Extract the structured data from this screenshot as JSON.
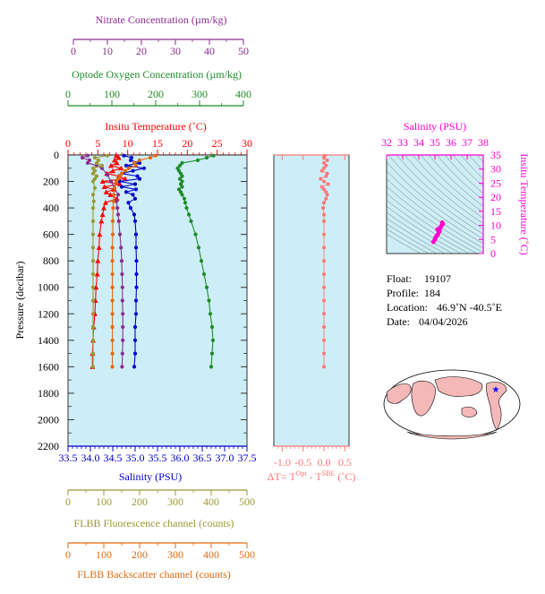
{
  "colors": {
    "nitrate": "#8b2c8f",
    "oxygen": "#1e8b28",
    "temperature": "#ff0000",
    "salinity": "#0000cc",
    "fluorescence": "#999933",
    "backscatter": "#e06a10",
    "delta": "#ff7777",
    "ts": "#ff00cc",
    "panel_bg": "#cdeef6",
    "axis_dark": "#333333",
    "map_land": "#f4b8b8",
    "map_sea": "#ffffff",
    "float_marker": "#0000ff"
  },
  "axes": {
    "nitrate": {
      "title": "Nitrate Concentration (µm/kg)",
      "ticks": [
        "0",
        "10",
        "20",
        "30",
        "40",
        "50"
      ]
    },
    "oxygen": {
      "title": "Optode Oxygen Concentration (µm/kg)",
      "ticks": [
        "0",
        "100",
        "200",
        "300",
        "400"
      ]
    },
    "temperature": {
      "title": "Insitu Temperature (˚C)",
      "ticks": [
        "0",
        "5",
        "10",
        "15",
        "20",
        "25",
        "30"
      ]
    },
    "pressure": {
      "title": "Pressure (decibar)",
      "ticks": [
        "0",
        "200",
        "400",
        "600",
        "800",
        "1000",
        "1200",
        "1400",
        "1600",
        "1800",
        "2000",
        "2200"
      ]
    },
    "salinity": {
      "title": "Salinity (PSU)",
      "ticks": [
        "33.5",
        "34.0",
        "34.5",
        "35.0",
        "35.5",
        "36.0",
        "36.5",
        "37.0",
        "37.5"
      ]
    },
    "delta": {
      "title": "ΔT= T",
      "sup1": "Opt",
      "mid": " - T",
      "sup2": "SBE",
      "tail": " (˚C)",
      "ticks": [
        "-1.0",
        "-0.5",
        "0.0",
        "0.5"
      ]
    },
    "fluorescence": {
      "title": "FLBB Fluorescence channel (counts)",
      "ticks": [
        "0",
        "100",
        "200",
        "300",
        "400",
        "500"
      ]
    },
    "backscatter": {
      "title": "FLBB Backscatter channel (counts)",
      "ticks": [
        "0",
        "100",
        "200",
        "300",
        "400",
        "500"
      ]
    },
    "ts_salinity": {
      "title": "Salinity (PSU)",
      "ticks": [
        "32",
        "33",
        "34",
        "35",
        "36",
        "37",
        "38"
      ]
    },
    "ts_temperature": {
      "title": "Insitu Temperature (˚C)",
      "ticks": [
        "0",
        "5",
        "10",
        "15",
        "20",
        "25",
        "30",
        "35"
      ]
    }
  },
  "info": {
    "float_label": "Float:",
    "float_value": "19107",
    "profile_label": "Profile:",
    "profile_value": "184",
    "location_label": "Location:",
    "location_value": "46.9˚N  -40.5˚E",
    "date_label": "Date:",
    "date_value": "04/04/2026"
  },
  "chart_data": [
    {
      "type": "line",
      "panel": "profiles",
      "y_axis": {
        "label": "Pressure (decibar)",
        "range": [
          2200,
          0
        ]
      },
      "series": [
        {
          "key": "temperature",
          "scale": [
            0,
            30
          ],
          "pressure": [
            5,
            20,
            40,
            60,
            80,
            100,
            120,
            140,
            160,
            180,
            200,
            220,
            240,
            260,
            280,
            300,
            330,
            360,
            400,
            450,
            500,
            600,
            700,
            800,
            900,
            1000,
            1100,
            1200,
            1300,
            1400,
            1500,
            1600
          ],
          "values": [
            8.1,
            8.5,
            7.8,
            8.2,
            7.2,
            8.9,
            7.5,
            6.5,
            8.5,
            9.6,
            5.8,
            8.7,
            6.1,
            7.7,
            6.4,
            7.1,
            8.2,
            6.3,
            6.0,
            5.8,
            5.6,
            5.3,
            5.2,
            5.0,
            4.9,
            4.7,
            4.6,
            4.5,
            4.3,
            4.2,
            4.1,
            4.1
          ]
        },
        {
          "key": "salinity",
          "scale": [
            33.5,
            37.5
          ],
          "pressure": [
            5,
            20,
            40,
            60,
            80,
            100,
            120,
            140,
            160,
            180,
            200,
            220,
            240,
            260,
            280,
            300,
            330,
            360,
            400,
            450,
            500,
            600,
            700,
            800,
            900,
            1000,
            1100,
            1200,
            1300,
            1400,
            1500,
            1600
          ],
          "values": [
            34.75,
            34.92,
            34.9,
            35.1,
            34.8,
            35.2,
            34.95,
            34.7,
            35.05,
            35.1,
            34.65,
            35.0,
            34.7,
            35.02,
            34.8,
            34.95,
            35.0,
            34.85,
            34.9,
            34.98,
            35.0,
            35.02,
            35.02,
            35.03,
            35.03,
            35.03,
            35.02,
            35.02,
            35.0,
            35.0,
            35.0,
            34.98
          ]
        },
        {
          "key": "oxygen",
          "scale": [
            0,
            400
          ],
          "pressure": [
            5,
            20,
            40,
            60,
            80,
            100,
            120,
            140,
            160,
            180,
            200,
            220,
            240,
            260,
            280,
            300,
            330,
            360,
            400,
            450,
            500,
            600,
            700,
            800,
            900,
            1000,
            1100,
            1200,
            1300,
            1400,
            1500,
            1600
          ],
          "values": [
            325,
            310,
            290,
            255,
            250,
            245,
            248,
            252,
            255,
            250,
            255,
            252,
            255,
            248,
            252,
            255,
            260,
            262,
            265,
            270,
            275,
            285,
            292,
            298,
            304,
            310,
            315,
            318,
            322,
            324,
            322,
            320
          ]
        },
        {
          "key": "nitrate",
          "scale": [
            0,
            50
          ],
          "pressure": [
            5,
            20,
            40,
            60,
            80,
            100,
            150,
            200,
            250,
            300,
            350,
            400,
            450,
            500,
            600,
            700,
            800,
            900,
            1000,
            1100,
            1200,
            1300,
            1400,
            1500,
            1600
          ],
          "values": [
            5.5,
            4.0,
            6.0,
            5.5,
            8.0,
            9.5,
            11.0,
            12.0,
            13.0,
            14.0,
            13.5,
            13.8,
            14.0,
            14.2,
            14.5,
            14.8,
            15.0,
            15.1,
            15.2,
            15.2,
            15.3,
            15.3,
            15.3,
            15.2,
            15.1
          ]
        },
        {
          "key": "fluorescence",
          "scale": [
            0,
            500
          ],
          "pressure": [
            5,
            20,
            40,
            60,
            80,
            100,
            120,
            140,
            160,
            180,
            200,
            250,
            300,
            350,
            400,
            500,
            600,
            700,
            800,
            900,
            1000,
            1100,
            1200,
            1300,
            1400,
            1500,
            1600
          ],
          "values": [
            110,
            75,
            85,
            80,
            95,
            70,
            75,
            70,
            80,
            75,
            70,
            75,
            70,
            72,
            70,
            70,
            70,
            70,
            70,
            70,
            70,
            70,
            70,
            70,
            70,
            70,
            70
          ]
        },
        {
          "key": "backscatter",
          "scale": [
            0,
            500
          ],
          "pressure": [
            5,
            20,
            40,
            60,
            80,
            100,
            120,
            140,
            160,
            180,
            200,
            250,
            300,
            350,
            400,
            500,
            600,
            700,
            800,
            900,
            1000,
            1100,
            1200,
            1300,
            1400,
            1500,
            1600
          ],
          "values": [
            245,
            230,
            200,
            185,
            190,
            170,
            160,
            150,
            145,
            140,
            135,
            130,
            128,
            127,
            126,
            125,
            125,
            124,
            124,
            124,
            124,
            124,
            124,
            124,
            124,
            124,
            124
          ]
        }
      ]
    },
    {
      "type": "scatter",
      "panel": "delta",
      "x_axis": {
        "label": "ΔT= T^Opt - T^SBE (˚C)",
        "range": [
          -1.2,
          0.6
        ]
      },
      "y_axis": {
        "range": [
          2200,
          0
        ]
      },
      "pressure": [
        5,
        20,
        40,
        60,
        80,
        100,
        120,
        140,
        160,
        180,
        200,
        220,
        240,
        260,
        280,
        300,
        330,
        360,
        400,
        450,
        500,
        600,
        700,
        800,
        900,
        1000,
        1100,
        1200,
        1300,
        1400,
        1500,
        1600
      ],
      "values": [
        0.02,
        0.0,
        0.08,
        0.0,
        0.05,
        0.0,
        -0.05,
        0.08,
        0.05,
        -0.08,
        0.0,
        0.1,
        -0.05,
        0.0,
        0.05,
        0.08,
        0.05,
        0.0,
        -0.02,
        0.0,
        0.0,
        0.0,
        0.0,
        0.0,
        0.0,
        0.0,
        0.0,
        0.0,
        0.0,
        0.0,
        0.0,
        0.0
      ]
    },
    {
      "type": "scatter",
      "panel": "ts",
      "x_axis": {
        "label": "Salinity (PSU)",
        "range": [
          32,
          38
        ]
      },
      "y_axis": {
        "label": "Insitu Temperature (˚C)",
        "range": [
          0,
          35
        ]
      },
      "x": [
        34.9,
        34.95,
        35.0,
        35.02,
        35.05,
        35.1,
        35.15,
        35.2,
        35.25,
        35.2,
        35.15,
        35.3,
        35.35,
        35.4,
        35.5,
        35.45,
        35.3
      ],
      "y": [
        4.1,
        4.5,
        5.0,
        5.3,
        5.8,
        6.2,
        6.5,
        7.0,
        7.8,
        8.2,
        8.6,
        9.0,
        9.3,
        9.8,
        10.5,
        11.0,
        8.0
      ]
    }
  ]
}
